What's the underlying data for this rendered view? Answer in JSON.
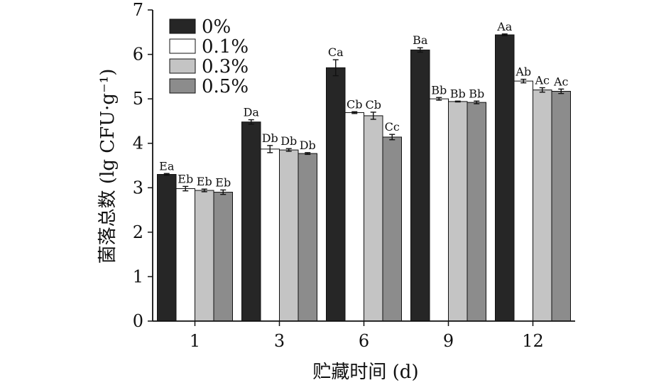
{
  "chart_data": {
    "type": "bar",
    "xlabel": "贮藏时间 (d)",
    "ylabel": "菌落总数 (lg CFU·g⁻¹)",
    "ylim": [
      0,
      7
    ],
    "yticks": [
      0,
      1,
      2,
      3,
      4,
      5,
      6,
      7
    ],
    "grid": false,
    "legend_position": "top-left",
    "categories": [
      "1",
      "3",
      "6",
      "9",
      "12"
    ],
    "series": [
      {
        "name": "0%",
        "color": "#262626",
        "values": [
          3.3,
          4.48,
          5.7,
          6.1,
          6.44
        ],
        "errors": [
          0.02,
          0.05,
          0.18,
          0.05,
          0.02
        ],
        "labels": [
          "Ea",
          "Da",
          "Ca",
          "Ba",
          "Aa"
        ]
      },
      {
        "name": "0.1%",
        "color": "#ffffff",
        "values": [
          2.98,
          3.87,
          4.69,
          5.0,
          5.4
        ],
        "errors": [
          0.05,
          0.08,
          0.02,
          0.03,
          0.04
        ],
        "labels": [
          "Eb",
          "Db",
          "Cb",
          "Bb",
          "Ab"
        ]
      },
      {
        "name": "0.3%",
        "color": "#c4c4c4",
        "values": [
          2.94,
          3.85,
          4.62,
          4.94,
          5.2
        ],
        "errors": [
          0.03,
          0.03,
          0.08,
          0.01,
          0.05
        ],
        "labels": [
          "Eb",
          "Db",
          "Cb",
          "Bb",
          "Ac"
        ]
      },
      {
        "name": "0.5%",
        "color": "#8c8c8c",
        "values": [
          2.9,
          3.77,
          4.14,
          4.92,
          5.17
        ],
        "errors": [
          0.05,
          0.02,
          0.06,
          0.03,
          0.05
        ],
        "labels": [
          "Eb",
          "Db",
          "Cc",
          "Bb",
          "Ac"
        ]
      }
    ]
  }
}
